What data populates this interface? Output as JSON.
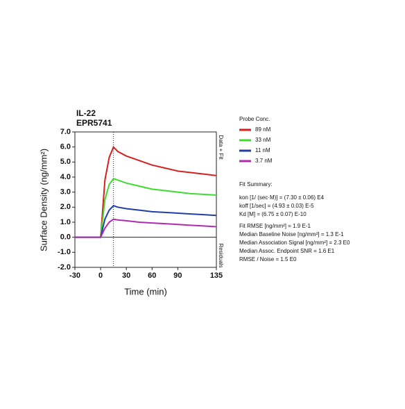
{
  "chart_data": {
    "type": "line",
    "title_lines": [
      "IL-22",
      "EPR5741"
    ],
    "ylabel": "Surface Density (ng/mm²)",
    "xlabel": "Time (min)",
    "side_labels": [
      "Data + Fit",
      "Residuals"
    ],
    "legend_title": "Probe Conc.",
    "x": [
      -30,
      -15,
      0,
      5,
      10,
      15,
      20,
      30,
      45,
      60,
      75,
      90,
      105,
      120,
      135
    ],
    "series": [
      {
        "name": "89 nM",
        "color": "#d42020",
        "values": [
          0,
          0,
          0,
          3.8,
          5.3,
          6.0,
          5.7,
          5.4,
          5.1,
          4.8,
          4.6,
          4.4,
          4.3,
          4.2,
          4.1
        ]
      },
      {
        "name": "33 nM",
        "color": "#3ddc2e",
        "values": [
          0,
          0,
          0,
          2.5,
          3.5,
          3.9,
          3.8,
          3.6,
          3.4,
          3.2,
          3.1,
          3.0,
          2.9,
          2.85,
          2.8
        ]
      },
      {
        "name": "11 nM",
        "color": "#1f3fa8",
        "values": [
          0,
          0,
          0,
          1.2,
          1.8,
          2.1,
          2.0,
          1.9,
          1.8,
          1.7,
          1.65,
          1.6,
          1.55,
          1.5,
          1.45
        ]
      },
      {
        "name": "3.7 nM",
        "color": "#b02ab0",
        "values": [
          0,
          0,
          0,
          0.6,
          1.0,
          1.2,
          1.15,
          1.1,
          1.0,
          0.95,
          0.9,
          0.85,
          0.8,
          0.75,
          0.7
        ]
      }
    ],
    "injection_end": 15,
    "xlim": [
      -30,
      135
    ],
    "xticks": [
      -30,
      0,
      30,
      60,
      90,
      135
    ],
    "ylim": [
      -2,
      7
    ],
    "yticks": [
      {
        "value": 7,
        "label": "7.0"
      },
      {
        "value": 6,
        "label": "6.0"
      },
      {
        "value": 5,
        "label": "5.0"
      },
      {
        "value": 4,
        "label": "4.0"
      },
      {
        "value": 3,
        "label": "3.0"
      },
      {
        "value": 2,
        "label": "2.0"
      },
      {
        "value": 1,
        "label": "1.0"
      },
      {
        "value": 0,
        "label": "0.0"
      },
      {
        "value": -1,
        "label": "-1.0"
      },
      {
        "value": -2,
        "label": "-2.0"
      }
    ],
    "fit_summary": [
      "Fit Summary:",
      "kon  [1/ (sec·M)]  =   (7.30 ± 0.06) E4",
      "koff  [1/sec]  =   (4.93 ± 0.03) E-5",
      "Kd  [M]  =   (6.75 ± 0.07) E-10",
      "Fit RMSE [ng/mm²]  =  1.9 E-1",
      "Median Baseline Noise [ng/mm²]  =  1.3 E-1",
      "Median Association Signal [ng/mm²]  =  2.3 E0",
      "Median Assoc. Endpoint SNR  =  1.6 E1",
      "RMSE / Noise  =  1.5 E0"
    ]
  }
}
